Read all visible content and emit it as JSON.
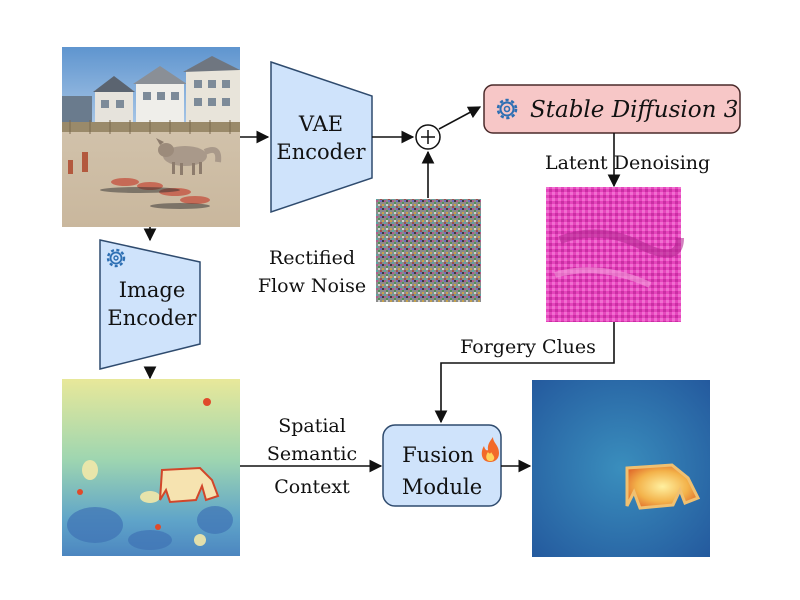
{
  "blocks": {
    "vae_encoder": {
      "line1": "VAE",
      "line2": "Encoder"
    },
    "image_encoder": {
      "line1": "Image",
      "line2": "Encoder"
    },
    "stable_diffusion": {
      "title": "Stable Diffusion 3"
    },
    "fusion_module": {
      "line1": "Fusion",
      "line2": "Module"
    }
  },
  "labels": {
    "latent_denoising": "Latent  Denoising",
    "rectified_line1": "Rectified",
    "rectified_line2": "Flow Noise",
    "forgery_clues": "Forgery Clues",
    "spatial_line1": "Spatial",
    "spatial_line2": "Semantic",
    "spatial_line3": "Context"
  },
  "colors": {
    "block_fill": "#cfe3fb",
    "block_stroke": "#2f4b6e",
    "sd_fill": "#f7c7c7",
    "sd_stroke": "#4a2a2a",
    "noise_gray": "#8a8a8a",
    "magenta": "#e23bb7",
    "heatmap_bg": "#2a63a8"
  },
  "icons": {
    "gear": "gear-icon",
    "flame": "flame-icon",
    "plus": "circle-plus-icon"
  }
}
